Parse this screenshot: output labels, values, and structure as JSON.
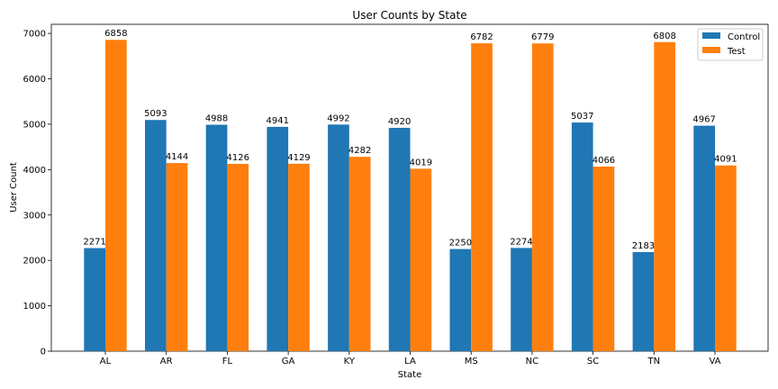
{
  "chart_data": {
    "type": "bar",
    "title": "User Counts by State",
    "xlabel": "State",
    "ylabel": "User Count",
    "ylim": [
      0,
      7200
    ],
    "yticks": [
      0,
      1000,
      2000,
      3000,
      4000,
      5000,
      6000,
      7000
    ],
    "grid": false,
    "legend_position": "top-right",
    "categories": [
      "AL",
      "AR",
      "FL",
      "GA",
      "KY",
      "LA",
      "MS",
      "NC",
      "SC",
      "TN",
      "VA"
    ],
    "series": [
      {
        "name": "Control",
        "color": "#1f77b4",
        "values": [
          2271,
          5093,
          4988,
          4941,
          4992,
          4920,
          2250,
          2274,
          5037,
          2183,
          4967
        ]
      },
      {
        "name": "Test",
        "color": "#ff7f0e",
        "values": [
          6858,
          4144,
          4126,
          4129,
          4282,
          4019,
          6782,
          6779,
          4066,
          6808,
          4091
        ]
      }
    ]
  }
}
